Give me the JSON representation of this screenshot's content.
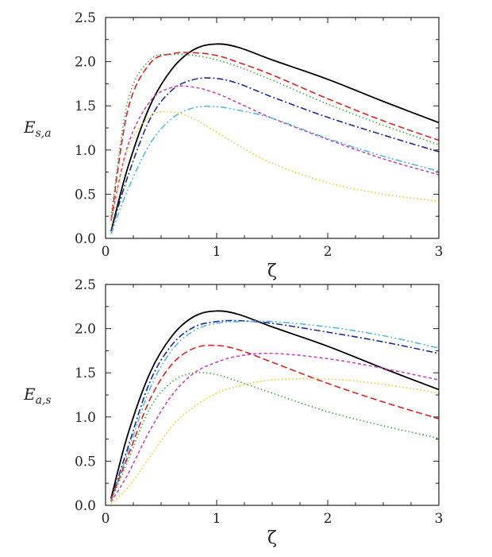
{
  "chart_data": [
    {
      "type": "line",
      "xlabel": "ζ",
      "ylabel_main": "E",
      "ylabel_sub": "s,a",
      "xlim": [
        0,
        3
      ],
      "ylim": [
        0,
        2.5
      ],
      "xticks": [
        0,
        1,
        2,
        3
      ],
      "yticks": [
        0.0,
        0.5,
        1.0,
        1.5,
        2.0,
        2.5
      ],
      "xtick_labels": [
        "0",
        "1",
        "2",
        "3"
      ],
      "ytick_labels": [
        "0.0",
        "0.5",
        "1.0",
        "1.5",
        "2.0",
        "2.5"
      ],
      "grid": false,
      "series": [
        {
          "color": "#000000",
          "dash": "solid",
          "x": [
            0.05,
            0.2,
            0.4,
            0.6,
            0.8,
            1.0,
            1.2,
            1.5,
            2.0,
            2.5,
            3.0
          ],
          "y": [
            0.08,
            0.8,
            1.5,
            1.92,
            2.14,
            2.2,
            2.16,
            2.02,
            1.8,
            1.55,
            1.31
          ]
        },
        {
          "color": "#dd2222",
          "dash": "dashed",
          "x": [
            0.05,
            0.2,
            0.4,
            0.6,
            0.8,
            1.0,
            1.2,
            1.5,
            2.0,
            2.5,
            3.0
          ],
          "y": [
            0.2,
            1.45,
            1.98,
            2.09,
            2.1,
            2.07,
            1.99,
            1.85,
            1.58,
            1.33,
            1.11
          ]
        },
        {
          "color": "#44aa44",
          "dash": "dotted",
          "x": [
            0.05,
            0.2,
            0.4,
            0.6,
            0.8,
            1.0,
            1.2,
            1.5,
            2.0,
            2.5,
            3.0
          ],
          "y": [
            0.25,
            1.55,
            2.02,
            2.08,
            2.07,
            2.02,
            1.94,
            1.79,
            1.52,
            1.28,
            1.06
          ]
        },
        {
          "color": "#1f2a99",
          "dash": "dashdot",
          "x": [
            0.05,
            0.2,
            0.4,
            0.6,
            0.8,
            1.0,
            1.2,
            1.5,
            2.0,
            2.5,
            3.0
          ],
          "y": [
            0.08,
            0.7,
            1.35,
            1.68,
            1.8,
            1.81,
            1.75,
            1.6,
            1.37,
            1.17,
            0.98
          ]
        },
        {
          "color": "#cc44bb",
          "dash": "shortdash",
          "x": [
            0.05,
            0.2,
            0.4,
            0.6,
            0.8,
            1.0,
            1.2,
            1.5,
            2.0,
            2.5,
            3.0
          ],
          "y": [
            0.2,
            1.05,
            1.55,
            1.71,
            1.71,
            1.64,
            1.53,
            1.36,
            1.12,
            0.9,
            0.72
          ]
        },
        {
          "color": "#55bbdd",
          "dash": "dashdotdot",
          "x": [
            0.05,
            0.2,
            0.4,
            0.6,
            0.8,
            1.0,
            1.2,
            1.5,
            2.0,
            2.5,
            3.0
          ],
          "y": [
            0.05,
            0.55,
            1.07,
            1.36,
            1.48,
            1.49,
            1.45,
            1.36,
            1.13,
            0.93,
            0.76
          ]
        },
        {
          "color": "#e0d21a",
          "dash": "dotted",
          "x": [
            0.05,
            0.2,
            0.4,
            0.6,
            0.8,
            1.0,
            1.2,
            1.5,
            2.0,
            2.5,
            3.0
          ],
          "y": [
            0.15,
            1.0,
            1.38,
            1.43,
            1.35,
            1.2,
            1.05,
            0.85,
            0.63,
            0.5,
            0.42
          ]
        }
      ]
    },
    {
      "type": "line",
      "xlabel": "ζ",
      "ylabel_main": "E",
      "ylabel_sub": "a,s",
      "xlim": [
        0,
        3
      ],
      "ylim": [
        0,
        2.5
      ],
      "xticks": [
        0,
        1,
        2,
        3
      ],
      "yticks": [
        0.0,
        0.5,
        1.0,
        1.5,
        2.0,
        2.5
      ],
      "xtick_labels": [
        "0",
        "1",
        "2",
        "3"
      ],
      "ytick_labels": [
        "0.0",
        "0.5",
        "1.0",
        "1.5",
        "2.0",
        "2.5"
      ],
      "grid": false,
      "series": [
        {
          "color": "#000000",
          "dash": "solid",
          "x": [
            0.05,
            0.2,
            0.4,
            0.6,
            0.8,
            1.0,
            1.2,
            1.5,
            2.0,
            2.5,
            3.0
          ],
          "y": [
            0.08,
            0.8,
            1.5,
            1.92,
            2.14,
            2.2,
            2.16,
            2.02,
            1.8,
            1.55,
            1.31
          ]
        },
        {
          "color": "#1f2a99",
          "dash": "dashdot",
          "x": [
            0.05,
            0.2,
            0.4,
            0.6,
            0.8,
            1.0,
            1.2,
            1.5,
            2.0,
            2.5,
            3.0
          ],
          "y": [
            0.06,
            0.65,
            1.4,
            1.82,
            2.02,
            2.08,
            2.09,
            2.06,
            1.96,
            1.85,
            1.72
          ]
        },
        {
          "color": "#55bbdd",
          "dash": "dashdotdot",
          "x": [
            0.05,
            0.2,
            0.4,
            0.6,
            0.8,
            1.0,
            1.2,
            1.5,
            2.0,
            2.5,
            3.0
          ],
          "y": [
            0.05,
            0.6,
            1.32,
            1.76,
            1.98,
            2.06,
            2.08,
            2.08,
            2.02,
            1.92,
            1.78
          ]
        },
        {
          "color": "#dd2222",
          "dash": "dashed",
          "x": [
            0.05,
            0.2,
            0.4,
            0.6,
            0.8,
            1.0,
            1.2,
            1.5,
            2.0,
            2.5,
            3.0
          ],
          "y": [
            0.07,
            0.55,
            1.2,
            1.6,
            1.78,
            1.81,
            1.76,
            1.62,
            1.38,
            1.17,
            0.98
          ]
        },
        {
          "color": "#cc44bb",
          "dash": "shortdash",
          "x": [
            0.05,
            0.2,
            0.4,
            0.6,
            0.8,
            1.0,
            1.2,
            1.5,
            2.0,
            2.5,
            3.0
          ],
          "y": [
            0.04,
            0.35,
            0.85,
            1.25,
            1.5,
            1.62,
            1.69,
            1.72,
            1.66,
            1.55,
            1.42
          ]
        },
        {
          "color": "#44aa44",
          "dash": "dotted",
          "x": [
            0.05,
            0.2,
            0.4,
            0.6,
            0.8,
            1.0,
            1.2,
            1.5,
            2.0,
            2.5,
            3.0
          ],
          "y": [
            0.05,
            0.5,
            1.1,
            1.4,
            1.5,
            1.48,
            1.4,
            1.27,
            1.06,
            0.9,
            0.76
          ]
        },
        {
          "color": "#e0d21a",
          "dash": "dotted",
          "x": [
            0.05,
            0.2,
            0.4,
            0.6,
            0.8,
            1.0,
            1.2,
            1.5,
            2.0,
            2.5,
            3.0
          ],
          "y": [
            0.02,
            0.2,
            0.55,
            0.9,
            1.12,
            1.27,
            1.35,
            1.42,
            1.43,
            1.37,
            1.27
          ]
        }
      ]
    }
  ]
}
